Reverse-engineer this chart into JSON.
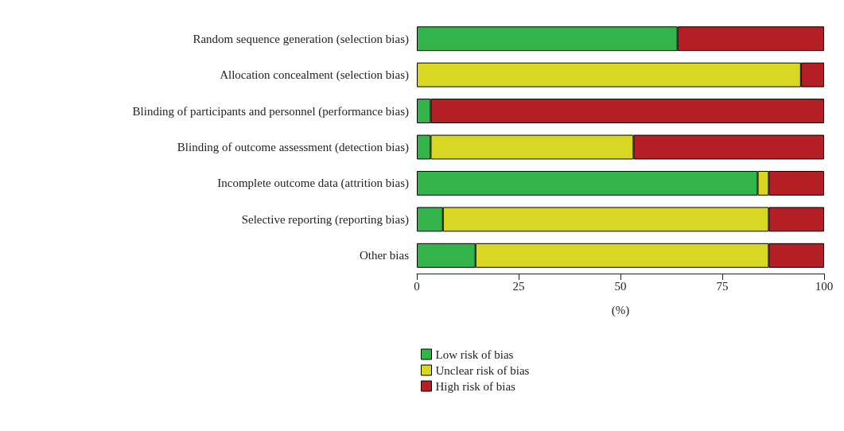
{
  "chart_data": {
    "type": "bar",
    "orientation": "horizontal",
    "stacked": true,
    "categories": [
      "Random sequence generation (selection bias)",
      "Allocation concealment (selection bias)",
      "Blinding of participants and personnel (performance bias)",
      "Blinding of outcome assessment (detection bias)",
      "Incomplete outcome data (attrition bias)",
      "Selective reporting (reporting bias)",
      "Other bias"
    ],
    "series": [
      {
        "name": "Low risk of bias",
        "color": "#33b44a",
        "values": [
          64,
          0,
          3.4,
          3.4,
          83.7,
          6.4,
          14.4
        ]
      },
      {
        "name": "Unclear risk of bias",
        "color": "#d8d824",
        "values": [
          0,
          94.3,
          0,
          49.8,
          2.7,
          80,
          72
        ]
      },
      {
        "name": "High risk of bias",
        "color": "#b31f24",
        "values": [
          36,
          5.7,
          96.6,
          46.8,
          13.6,
          13.6,
          13.6
        ]
      }
    ],
    "xlim": [
      0,
      100
    ],
    "xticks": [
      0,
      25,
      50,
      75,
      100
    ],
    "xlabel": "(%)",
    "grid": false,
    "legend": "bottom left"
  }
}
